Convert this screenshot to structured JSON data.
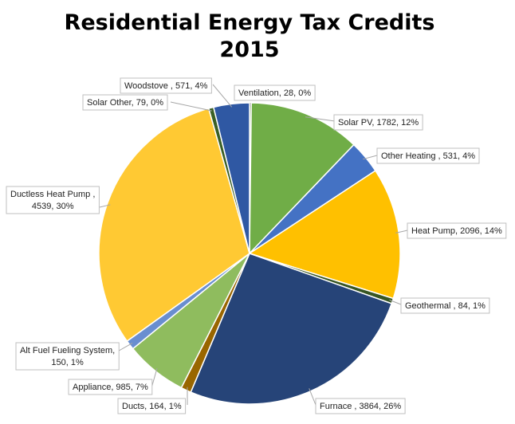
{
  "chart_data": {
    "type": "pie",
    "title": "Residential Energy Tax Credits",
    "subtitle": "2015",
    "slices": [
      {
        "label": "Ventilation",
        "value": 28,
        "percent": "0%",
        "color": "#4d7a2e"
      },
      {
        "label": "Solar PV",
        "value": 1782,
        "percent": "12%",
        "color": "#70ad47"
      },
      {
        "label": "Other Heating ",
        "value": 531,
        "percent": "4%",
        "color": "#4472c4"
      },
      {
        "label": "Heat Pump",
        "value": 2096,
        "percent": "14%",
        "color": "#ffc000"
      },
      {
        "label": "Geothermal ",
        "value": 84,
        "percent": "1%",
        "color": "#375623"
      },
      {
        "label": "Furnace ",
        "value": 3864,
        "percent": "26%",
        "color": "#264478"
      },
      {
        "label": "Ducts",
        "value": 164,
        "percent": "1%",
        "color": "#996600"
      },
      {
        "label": "Appliance",
        "value": 985,
        "percent": "7%",
        "color": "#8fbc5e"
      },
      {
        "label": "Alt Fuel Fueling System",
        "value": 150,
        "percent": "1%",
        "color": "#698ed0"
      },
      {
        "label": "Ductless Heat Pump ",
        "value": 4539,
        "percent": "30%",
        "color": "#ffc933"
      },
      {
        "label": "Solar Other",
        "value": 79,
        "percent": "0%",
        "color": "#3a5f24"
      },
      {
        "label": "Woodstove ",
        "value": 571,
        "percent": "4%",
        "color": "#2f58a3"
      }
    ]
  }
}
